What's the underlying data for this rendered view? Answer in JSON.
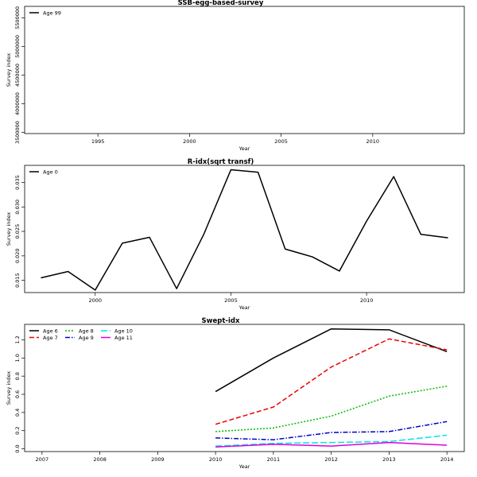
{
  "chart_data": [
    {
      "type": "line",
      "title": "SSB-egg-based-survey",
      "xlabel": "Year",
      "ylabel": "Survey index",
      "xlim": [
        1991,
        2015
      ],
      "ylim": [
        3480000,
        5700000
      ],
      "x_ticks": [
        1995,
        2000,
        2005,
        2010
      ],
      "y_ticks": [
        3500000,
        4000000,
        4500000,
        5000000,
        5500000
      ],
      "legend_position": "top-left",
      "series": [
        {
          "name": "Age 99",
          "color": "#000000",
          "dash": "",
          "x": [],
          "values": []
        }
      ]
    },
    {
      "type": "line",
      "title": "R-idx(sqrt transf)",
      "xlabel": "Year",
      "ylabel": "Survey index",
      "xlim": [
        1997.4,
        2013.6
      ],
      "ylim": [
        0.0125,
        0.0385
      ],
      "x_ticks": [
        2000,
        2005,
        2010
      ],
      "y_ticks": [
        0.015,
        0.02,
        0.025,
        0.03,
        0.035
      ],
      "legend_position": "top-left",
      "series": [
        {
          "name": "Age 0",
          "color": "#000000",
          "dash": "",
          "x": [
            1998,
            1999,
            2000,
            2001,
            2002,
            2003,
            2004,
            2005,
            2006,
            2007,
            2008,
            2009,
            2010,
            2011,
            2012,
            2013
          ],
          "values": [
            0.0155,
            0.0168,
            0.013,
            0.0226,
            0.0238,
            0.0133,
            0.0244,
            0.0376,
            0.0371,
            0.0214,
            0.0198,
            0.0169,
            0.0271,
            0.0362,
            0.0244,
            0.0237
          ]
        }
      ]
    },
    {
      "type": "line",
      "title": "Swept-idx",
      "xlabel": "Year",
      "ylabel": "Survey index",
      "xlim": [
        2006.7,
        2014.3
      ],
      "ylim": [
        -0.03,
        1.37
      ],
      "x_ticks": [
        2007,
        2008,
        2009,
        2010,
        2011,
        2012,
        2013,
        2014
      ],
      "y_ticks": [
        0.0,
        0.2,
        0.4,
        0.6,
        0.8,
        1.0,
        1.2
      ],
      "legend_position": "top-left",
      "x": [
        2010,
        2011,
        2012,
        2013,
        2014
      ],
      "series": [
        {
          "name": "Age 6",
          "color": "#000000",
          "dash": "",
          "values": [
            0.63,
            1.0,
            1.32,
            1.31,
            1.07
          ]
        },
        {
          "name": "Age 7",
          "color": "#ee0000",
          "dash": "6 3",
          "values": [
            0.27,
            0.46,
            0.9,
            1.21,
            1.09
          ]
        },
        {
          "name": "Age 8",
          "color": "#00bb00",
          "dash": "2 2",
          "values": [
            0.19,
            0.23,
            0.36,
            0.58,
            0.69
          ]
        },
        {
          "name": "Age 9",
          "color": "#0000cc",
          "dash": "6 2 1.5 2",
          "values": [
            0.12,
            0.1,
            0.18,
            0.19,
            0.3
          ]
        },
        {
          "name": "Age 10",
          "color": "#00e5e5",
          "dash": "8 3",
          "values": [
            0.03,
            0.06,
            0.07,
            0.08,
            0.15
          ]
        },
        {
          "name": "Age 11",
          "color": "#dd00dd",
          "dash": "",
          "values": [
            0.02,
            0.05,
            0.03,
            0.07,
            0.04
          ]
        }
      ]
    }
  ]
}
